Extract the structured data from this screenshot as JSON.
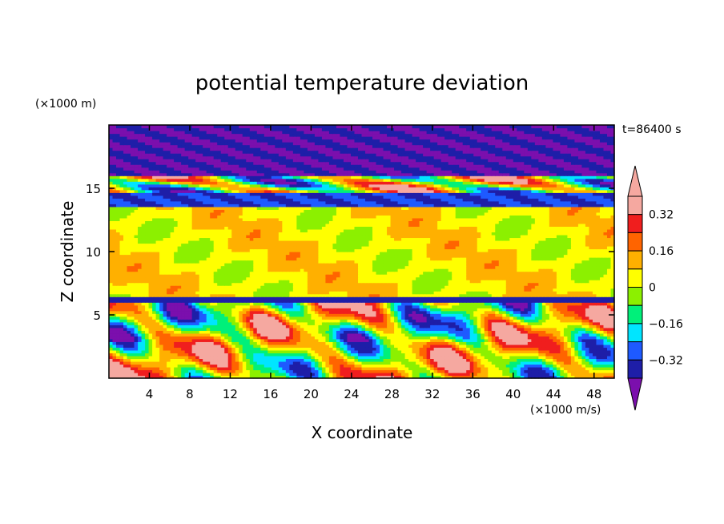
{
  "chart_data": {
    "type": "heatmap",
    "title": "potential temperature deviation",
    "xlabel": "X coordinate",
    "ylabel": "Z coordinate",
    "x_unit": "(×1000 m/s)",
    "y_unit": "(×1000 m)",
    "time_label": "t=86400 s",
    "xlim": [
      0,
      50
    ],
    "ylim": [
      0,
      20
    ],
    "x_ticks": [
      4,
      8,
      12,
      16,
      20,
      24,
      28,
      32,
      36,
      40,
      44,
      48
    ],
    "y_ticks": [
      5,
      10,
      15
    ],
    "colorbar": {
      "levels": [
        -0.4,
        -0.32,
        -0.24,
        -0.16,
        -0.08,
        0,
        0.08,
        0.16,
        0.24,
        0.32,
        0.4
      ],
      "tick_labels": [
        "0.32",
        "0.16",
        "0",
        "−0.16",
        "−0.32"
      ],
      "tick_values": [
        0.32,
        0.16,
        0,
        -0.16,
        -0.32
      ],
      "colors": [
        "#7b0fad",
        "#1e1ea8",
        "#1e5aff",
        "#00e5ff",
        "#00f07a",
        "#8cf000",
        "#ffff00",
        "#ffb000",
        "#ff6400",
        "#f01e1e",
        "#f5a8a0"
      ]
    },
    "bands": [
      {
        "z": [
          0,
          3
        ],
        "pattern": "turbulent",
        "range": [
          -0.32,
          0.4
        ]
      },
      {
        "z": [
          3,
          6
        ],
        "pattern": "turbulent",
        "range": [
          -0.4,
          0.4
        ]
      },
      {
        "z": [
          6,
          6.5
        ],
        "pattern": "layer",
        "value": -0.36
      },
      {
        "z": [
          6.5,
          13.5
        ],
        "pattern": "smooth",
        "range": [
          -0.08,
          0.24
        ]
      },
      {
        "z": [
          13.5,
          14.7
        ],
        "pattern": "layer",
        "value": -0.32
      },
      {
        "z": [
          14.7,
          16
        ],
        "pattern": "mixed",
        "range": [
          -0.4,
          0.4
        ]
      },
      {
        "z": [
          16,
          20
        ],
        "pattern": "layer",
        "value": -0.4
      }
    ]
  }
}
